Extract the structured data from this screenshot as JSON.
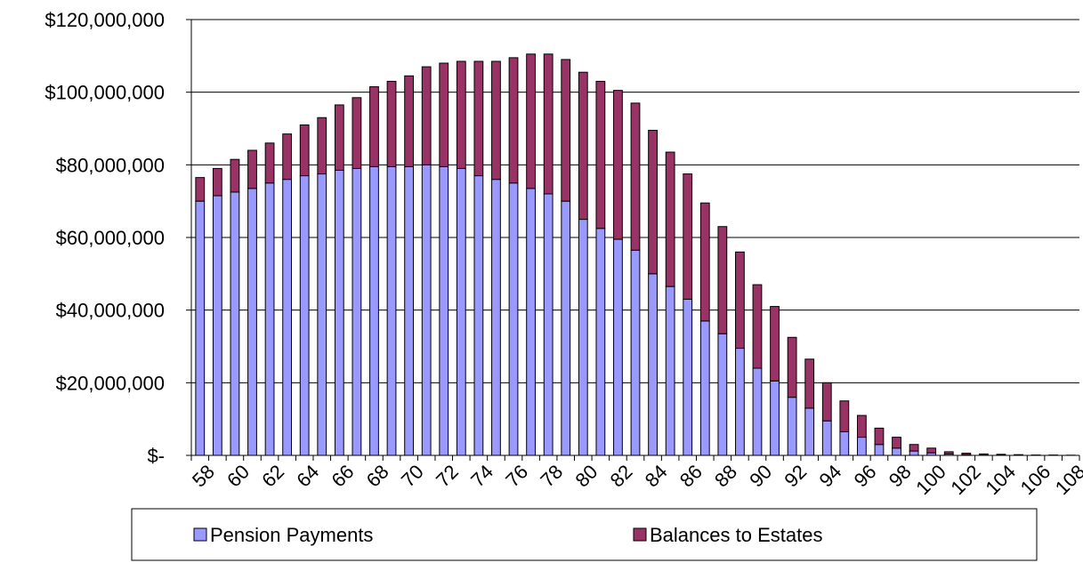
{
  "chart_data": {
    "type": "stacked_bar",
    "categories": [
      "58",
      null,
      "60",
      null,
      "62",
      null,
      "64",
      null,
      "66",
      null,
      "68",
      null,
      "70",
      null,
      "72",
      null,
      "74",
      null,
      "76",
      null,
      "78",
      null,
      "80",
      null,
      "82",
      null,
      "84",
      null,
      "86",
      null,
      "88",
      null,
      "90",
      null,
      "92",
      null,
      "94",
      null,
      "96",
      null,
      "98",
      null,
      "100",
      null,
      "102",
      null,
      "104",
      null,
      "106",
      null,
      "108"
    ],
    "series": [
      {
        "name": "Pension Payments",
        "color": "#9999ff",
        "values": [
          70000000,
          71500000,
          72500000,
          73500000,
          75000000,
          76000000,
          77000000,
          77500000,
          78500000,
          79000000,
          79500000,
          79500000,
          79500000,
          80000000,
          79500000,
          79000000,
          77000000,
          76000000,
          75000000,
          73500000,
          72000000,
          70000000,
          65000000,
          62500000,
          59500000,
          56500000,
          50000000,
          46500000,
          43000000,
          37000000,
          33500000,
          29500000,
          24000000,
          20500000,
          16000000,
          13000000,
          9500000,
          6500000,
          5000000,
          3000000,
          2000000,
          1200000,
          700000,
          400000,
          200000,
          100000,
          50000,
          30000,
          20000,
          10000,
          10000
        ]
      },
      {
        "name": "Balances to Estates",
        "color": "#993366",
        "values": [
          6500000,
          7500000,
          9000000,
          10500000,
          11000000,
          12500000,
          14000000,
          15500000,
          18000000,
          19500000,
          22000000,
          23500000,
          25000000,
          27000000,
          28500000,
          29500000,
          31500000,
          32500000,
          34500000,
          37000000,
          38500000,
          39000000,
          40500000,
          40500000,
          41000000,
          40500000,
          39500000,
          37000000,
          34500000,
          32500000,
          29500000,
          26500000,
          23000000,
          20500000,
          16500000,
          13500000,
          10500000,
          8500000,
          6000000,
          4500000,
          3000000,
          1800000,
          1300000,
          600000,
          400000,
          300000,
          250000,
          170000,
          80000,
          90000,
          40000
        ]
      }
    ],
    "ylim": [
      0,
      120000000
    ],
    "yticks": [
      {
        "value": 0,
        "label": "$-"
      },
      {
        "value": 20000000,
        "label": "$20,000,000"
      },
      {
        "value": 40000000,
        "label": "$40,000,000"
      },
      {
        "value": 60000000,
        "label": "$60,000,000"
      },
      {
        "value": 80000000,
        "label": "$80,000,000"
      },
      {
        "value": 100000000,
        "label": "$100,000,000"
      },
      {
        "value": 120000000,
        "label": "$120,000,000"
      }
    ],
    "grid": true,
    "legend": "bottom"
  }
}
